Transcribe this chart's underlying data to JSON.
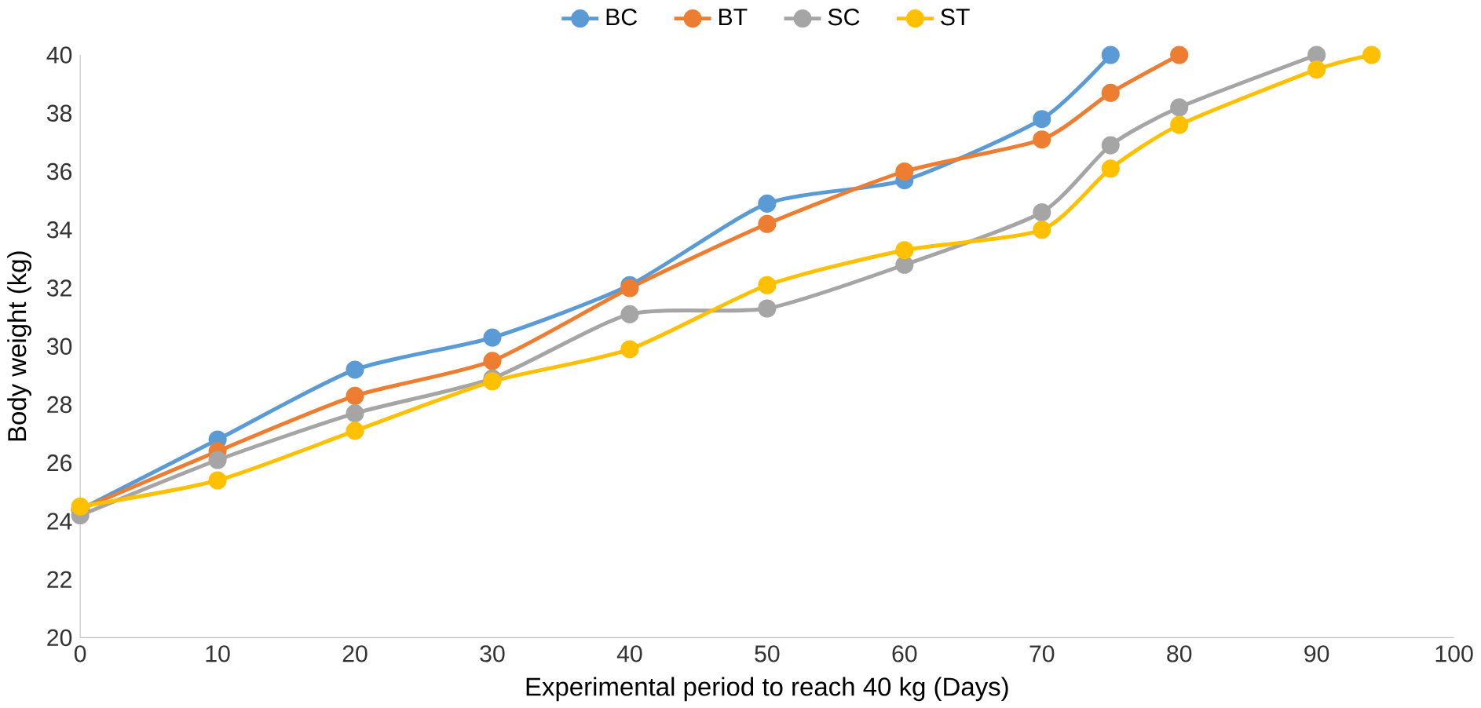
{
  "chart_data": {
    "type": "line",
    "xlabel": "Experimental period to reach 40 kg (Days)",
    "ylabel": "Body weight (kg)",
    "xlim": [
      0,
      100
    ],
    "xticks": [
      0,
      10,
      20,
      30,
      40,
      50,
      60,
      70,
      80,
      90,
      100
    ],
    "ylim": [
      20,
      40
    ],
    "yticks": [
      20,
      22,
      24,
      26,
      28,
      30,
      32,
      34,
      36,
      38,
      40
    ],
    "legend": "top",
    "marker": "circle",
    "grid": false,
    "series": [
      {
        "name": "BC",
        "color": "#5b9bd5",
        "x": [
          0,
          10,
          20,
          30,
          40,
          50,
          60,
          70,
          75
        ],
        "values": [
          24.4,
          26.8,
          29.2,
          30.3,
          32.1,
          34.9,
          35.7,
          37.8,
          40
        ]
      },
      {
        "name": "BT",
        "color": "#ed7d31",
        "x": [
          0,
          10,
          20,
          30,
          40,
          50,
          60,
          70,
          75,
          80
        ],
        "values": [
          24.4,
          26.4,
          28.3,
          29.5,
          32.0,
          34.2,
          36.0,
          37.1,
          38.7,
          40
        ]
      },
      {
        "name": "SC",
        "color": "#a5a5a5",
        "x": [
          0,
          10,
          20,
          30,
          40,
          50,
          60,
          70,
          75,
          80,
          90
        ],
        "values": [
          24.2,
          26.1,
          27.7,
          28.9,
          31.1,
          31.3,
          32.8,
          34.6,
          36.9,
          38.2,
          40
        ]
      },
      {
        "name": "ST",
        "color": "#ffc000",
        "x": [
          0,
          10,
          20,
          30,
          40,
          50,
          60,
          70,
          75,
          80,
          90,
          94
        ],
        "values": [
          24.5,
          25.4,
          27.1,
          28.8,
          29.9,
          32.1,
          33.3,
          34.0,
          36.1,
          37.6,
          39.5,
          40
        ]
      }
    ]
  }
}
